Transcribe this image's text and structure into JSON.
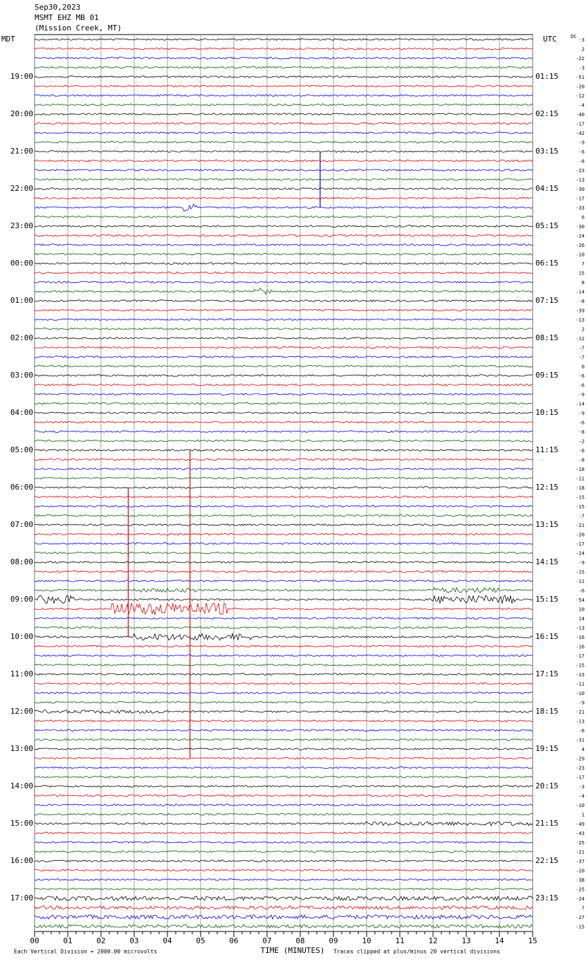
{
  "header": {
    "date": "Sep30,2023",
    "station": "MSMT EHZ MB 01",
    "location": "(Mission Creek, MT)",
    "left_zone": "MDT",
    "right_zone": "UTC",
    "dc_label": "DC"
  },
  "left_labels": [
    "19:00",
    "20:00",
    "21:00",
    "22:00",
    "23:00",
    "00:00",
    "01:00",
    "02:00",
    "03:00",
    "04:00",
    "05:00",
    "06:00",
    "07:00",
    "08:00",
    "09:00",
    "10:00",
    "11:00",
    "12:00",
    "13:00",
    "14:00",
    "15:00",
    "16:00",
    "17:00"
  ],
  "right_labels": [
    "01:15",
    "02:15",
    "03:15",
    "04:15",
    "05:15",
    "06:15",
    "07:15",
    "08:15",
    "09:15",
    "10:15",
    "11:15",
    "12:15",
    "13:15",
    "14:15",
    "15:15",
    "16:15",
    "17:15",
    "18:15",
    "19:15",
    "20:15",
    "21:15",
    "22:15",
    "23:15"
  ],
  "dc_offsets": [
    -3,
    2,
    -22,
    -3,
    -51,
    -20,
    -12,
    -4,
    -40,
    -17,
    -42,
    -9,
    -6,
    -8,
    -23,
    -13,
    -30,
    -17,
    -33,
    6,
    -30,
    -24,
    -26,
    -10,
    7,
    15,
    8,
    -14,
    -8,
    -39,
    -13,
    2,
    -12,
    -7,
    -7,
    0,
    -6,
    -6,
    -9,
    -14,
    -9,
    -6,
    -8,
    -2,
    -6,
    -8,
    -18,
    -11,
    -18,
    -15,
    -15,
    -7,
    -21,
    -20,
    -17,
    -24,
    -9,
    -15,
    -11,
    -6,
    -54,
    10,
    14,
    -13,
    -16,
    -16,
    -17,
    -15,
    -13,
    -11,
    -10,
    -9,
    -21,
    -13,
    -6,
    -31,
    4,
    -29,
    -23,
    -17,
    -3,
    -4,
    -10,
    1,
    -49,
    -43,
    -25,
    -21,
    -37,
    -10,
    -38,
    -25,
    -24,
    7,
    -27,
    -15
  ],
  "x_axis": {
    "labels": [
      "00",
      "01",
      "02",
      "03",
      "04",
      "05",
      "06",
      "07",
      "08",
      "09",
      "10",
      "11",
      "12",
      "13",
      "14",
      "15"
    ],
    "title": "TIME (MINUTES)"
  },
  "footer": {
    "scale": "Each Vertical Division = 2000.00 microvolts",
    "clip": "Traces clipped at plus/minus 20 vertical divisions"
  }
}
